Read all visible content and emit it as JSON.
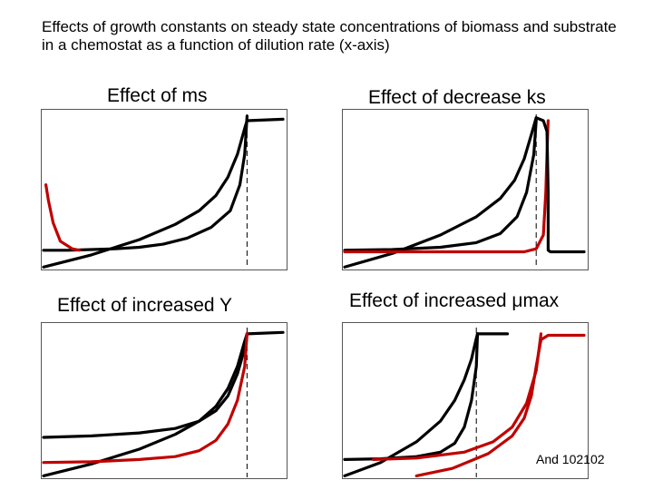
{
  "title": "Effects of growth constants on steady state concentrations of biomass and substrate in a chemostat as a function of dilution rate (x-axis)",
  "footer": "And 102102",
  "colors": {
    "baseline": "#000000",
    "modified": "#c00000",
    "washout_line": "#000000"
  },
  "panels": [
    {
      "name": "ms",
      "title": "Effect of ms",
      "baseline_washout": 0.85,
      "curves": [
        {
          "role": "biomass",
          "color": "#000000",
          "points": [
            [
              0,
              0.12
            ],
            [
              0.1,
              0.12
            ],
            [
              0.2,
              0.125
            ],
            [
              0.3,
              0.13
            ],
            [
              0.4,
              0.14
            ],
            [
              0.5,
              0.16
            ],
            [
              0.6,
              0.2
            ],
            [
              0.7,
              0.27
            ],
            [
              0.78,
              0.38
            ],
            [
              0.82,
              0.55
            ],
            [
              0.84,
              0.75
            ],
            [
              0.85,
              1.0
            ]
          ]
        },
        {
          "role": "substrate",
          "color": "#000000",
          "points": [
            [
              0,
              0.01
            ],
            [
              0.2,
              0.09
            ],
            [
              0.4,
              0.19
            ],
            [
              0.55,
              0.29
            ],
            [
              0.65,
              0.38
            ],
            [
              0.72,
              0.48
            ],
            [
              0.77,
              0.6
            ],
            [
              0.81,
              0.75
            ],
            [
              0.84,
              0.92
            ],
            [
              0.85,
              0.97
            ]
          ]
        },
        {
          "role": "substrate_plateau",
          "color": "#000000",
          "points": [
            [
              0.85,
              0.97
            ],
            [
              1.0,
              0.98
            ]
          ]
        },
        {
          "role": "biomass_modified",
          "color": "#c00000",
          "points": [
            [
              0.01,
              0.55
            ],
            [
              0.02,
              0.45
            ],
            [
              0.04,
              0.3
            ],
            [
              0.07,
              0.18
            ],
            [
              0.12,
              0.13
            ],
            [
              0.15,
              0.12
            ]
          ]
        }
      ]
    },
    {
      "name": "ks",
      "title": "Effect of decrease ks",
      "baseline_washout": 0.8,
      "curves": [
        {
          "role": "biomass",
          "color": "#000000",
          "points": [
            [
              0,
              0.12
            ],
            [
              0.2,
              0.125
            ],
            [
              0.4,
              0.14
            ],
            [
              0.55,
              0.17
            ],
            [
              0.65,
              0.23
            ],
            [
              0.72,
              0.34
            ],
            [
              0.76,
              0.5
            ],
            [
              0.79,
              0.75
            ],
            [
              0.8,
              0.97
            ]
          ]
        },
        {
          "role": "substrate",
          "color": "#000000",
          "points": [
            [
              0,
              0.01
            ],
            [
              0.2,
              0.1
            ],
            [
              0.4,
              0.22
            ],
            [
              0.55,
              0.34
            ],
            [
              0.65,
              0.46
            ],
            [
              0.71,
              0.58
            ],
            [
              0.75,
              0.72
            ],
            [
              0.78,
              0.88
            ],
            [
              0.8,
              0.99
            ]
          ]
        },
        {
          "role": "biomass_modified",
          "color": "#c00000",
          "points": [
            [
              0,
              0.11
            ],
            [
              0.3,
              0.11
            ],
            [
              0.6,
              0.11
            ],
            [
              0.75,
              0.11
            ],
            [
              0.8,
              0.13
            ],
            [
              0.83,
              0.22
            ],
            [
              0.84,
              0.5
            ],
            [
              0.845,
              0.75
            ],
            [
              0.85,
              0.97
            ]
          ]
        },
        {
          "role": "substrate_modified",
          "color": "#000000",
          "points": [
            [
              0.8,
              0.99
            ],
            [
              0.83,
              0.97
            ],
            [
              0.845,
              0.9
            ],
            [
              0.85,
              0.5
            ],
            [
              0.85,
              0.12
            ],
            [
              0.86,
              0.11
            ],
            [
              1.0,
              0.11
            ]
          ]
        }
      ]
    },
    {
      "name": "Y",
      "title": "Effect of increased Y",
      "baseline_washout": 0.85,
      "curves": [
        {
          "role": "biomass",
          "color": "#000000",
          "points": [
            [
              0,
              0.27
            ],
            [
              0.2,
              0.28
            ],
            [
              0.4,
              0.3
            ],
            [
              0.55,
              0.33
            ],
            [
              0.65,
              0.38
            ],
            [
              0.72,
              0.45
            ],
            [
              0.77,
              0.55
            ],
            [
              0.81,
              0.7
            ],
            [
              0.84,
              0.87
            ],
            [
              0.85,
              0.97
            ]
          ]
        },
        {
          "role": "substrate",
          "color": "#000000",
          "points": [
            [
              0,
              0.01
            ],
            [
              0.2,
              0.09
            ],
            [
              0.4,
              0.19
            ],
            [
              0.55,
              0.29
            ],
            [
              0.65,
              0.38
            ],
            [
              0.72,
              0.48
            ],
            [
              0.77,
              0.6
            ],
            [
              0.81,
              0.75
            ],
            [
              0.84,
              0.92
            ],
            [
              0.85,
              0.97
            ]
          ]
        },
        {
          "role": "substrate_plateau",
          "color": "#000000",
          "points": [
            [
              0.85,
              0.97
            ],
            [
              1.0,
              0.98
            ]
          ]
        },
        {
          "role": "biomass_modified",
          "color": "#c00000",
          "points": [
            [
              0,
              0.1
            ],
            [
              0.2,
              0.105
            ],
            [
              0.4,
              0.12
            ],
            [
              0.55,
              0.14
            ],
            [
              0.65,
              0.18
            ],
            [
              0.72,
              0.25
            ],
            [
              0.77,
              0.36
            ],
            [
              0.81,
              0.52
            ],
            [
              0.84,
              0.75
            ],
            [
              0.85,
              0.97
            ]
          ]
        }
      ]
    },
    {
      "name": "umax",
      "title": "Effect of increased μmax",
      "baseline_washout": 0.55,
      "curves": [
        {
          "role": "biomass",
          "color": "#000000",
          "points": [
            [
              0,
              0.12
            ],
            [
              0.15,
              0.125
            ],
            [
              0.3,
              0.14
            ],
            [
              0.4,
              0.17
            ],
            [
              0.46,
              0.23
            ],
            [
              0.5,
              0.34
            ],
            [
              0.53,
              0.52
            ],
            [
              0.55,
              0.75
            ],
            [
              0.555,
              0.97
            ]
          ]
        },
        {
          "role": "substrate",
          "color": "#000000",
          "points": [
            [
              0,
              0.01
            ],
            [
              0.15,
              0.1
            ],
            [
              0.3,
              0.24
            ],
            [
              0.4,
              0.38
            ],
            [
              0.46,
              0.52
            ],
            [
              0.5,
              0.66
            ],
            [
              0.53,
              0.8
            ],
            [
              0.55,
              0.94
            ],
            [
              0.555,
              0.97
            ]
          ]
        },
        {
          "role": "substrate_plateau",
          "color": "#000000",
          "points": [
            [
              0.555,
              0.97
            ],
            [
              0.68,
              0.97
            ]
          ]
        },
        {
          "role": "biomass_modified",
          "color": "#c00000",
          "points": [
            [
              0.12,
              0.12
            ],
            [
              0.3,
              0.13
            ],
            [
              0.5,
              0.17
            ],
            [
              0.62,
              0.24
            ],
            [
              0.7,
              0.34
            ],
            [
              0.76,
              0.5
            ],
            [
              0.8,
              0.72
            ],
            [
              0.82,
              0.97
            ]
          ]
        },
        {
          "role": "substrate_modified",
          "color": "#c00000",
          "points": [
            [
              0.3,
              0.01
            ],
            [
              0.45,
              0.06
            ],
            [
              0.6,
              0.16
            ],
            [
              0.7,
              0.28
            ],
            [
              0.75,
              0.4
            ],
            [
              0.78,
              0.55
            ],
            [
              0.8,
              0.75
            ],
            [
              0.82,
              0.93
            ]
          ]
        },
        {
          "role": "substrate_modified_plateau",
          "color": "#c00000",
          "points": [
            [
              0.82,
              0.93
            ],
            [
              0.85,
              0.96
            ],
            [
              1.0,
              0.96
            ]
          ]
        }
      ]
    }
  ]
}
